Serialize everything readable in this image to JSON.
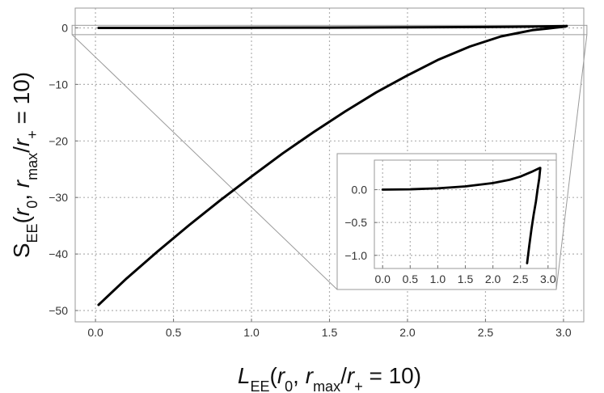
{
  "chart_data": [
    {
      "type": "line",
      "role": "main",
      "xlim": [
        -0.13,
        3.13
      ],
      "ylim": [
        -52,
        3.5
      ],
      "x_ticks": [
        0.0,
        0.5,
        1.0,
        1.5,
        2.0,
        2.5,
        3.0
      ],
      "x_tick_labels": [
        "0.0",
        "0.5",
        "1.0",
        "1.5",
        "2.0",
        "2.5",
        "3.0"
      ],
      "y_ticks": [
        0,
        -10,
        -20,
        -30,
        -40,
        -50
      ],
      "y_tick_labels": [
        "0",
        "−10",
        "−20",
        "−30",
        "−40",
        "−50"
      ],
      "grid": true,
      "xlabel": {
        "base": "L",
        "sub": "EE",
        "args": "(r",
        "args_sub": "0",
        "rest": ", r",
        "rest_sub": "max",
        "rest2": "/r",
        "rest2_sub": "+",
        "tail": " = 10)"
      },
      "ylabel": {
        "base": "S",
        "sub": "EE",
        "args": "(r",
        "args_sub": "0",
        "rest": ", r",
        "rest_sub": "max",
        "rest2": "/r",
        "rest2_sub": "+",
        "tail": " = 10)"
      },
      "series": [
        {
          "x": [
            0.02,
            0.5,
            1.0,
            1.5,
            2.0,
            2.5,
            2.8,
            3.02
          ],
          "y": [
            0.0,
            0.0,
            0.02,
            0.05,
            0.09,
            0.15,
            0.22,
            0.32
          ]
        },
        {
          "x": [
            0.02,
            0.2,
            0.4,
            0.6,
            0.8,
            1.0,
            1.2,
            1.4,
            1.6,
            1.8,
            2.0,
            2.2,
            2.4,
            2.6,
            2.8,
            2.9,
            2.95,
            3.0,
            3.02
          ],
          "y": [
            -49.0,
            -44.3,
            -39.5,
            -34.9,
            -30.5,
            -26.3,
            -22.2,
            -18.4,
            -14.8,
            -11.4,
            -8.4,
            -5.6,
            -3.3,
            -1.5,
            -0.4,
            -0.1,
            0.05,
            0.2,
            0.32
          ]
        }
      ]
    },
    {
      "type": "line",
      "role": "inset",
      "xlim": [
        -0.15,
        3.15
      ],
      "ylim": [
        -1.2,
        0.45
      ],
      "x_ticks": [
        0.0,
        0.5,
        1.0,
        1.5,
        2.0,
        2.5,
        3.0
      ],
      "x_tick_labels": [
        "0.0",
        "0.5",
        "1.0",
        "1.5",
        "2.0",
        "2.5",
        "3.0"
      ],
      "y_ticks": [
        0.0,
        -0.5,
        -1.0
      ],
      "y_tick_labels": [
        "0.0",
        "−0.5",
        "−1.0"
      ],
      "grid": true,
      "series": [
        {
          "x": [
            0.0,
            0.5,
            1.0,
            1.5,
            2.0,
            2.3,
            2.5,
            2.7,
            2.85
          ],
          "y": [
            0.0,
            0.005,
            0.02,
            0.05,
            0.1,
            0.15,
            0.2,
            0.27,
            0.33
          ]
        },
        {
          "x": [
            2.62,
            2.66,
            2.7,
            2.74,
            2.78,
            2.81,
            2.84,
            2.86
          ],
          "y": [
            -1.12,
            -0.85,
            -0.6,
            -0.38,
            -0.18,
            0.0,
            0.17,
            0.33
          ]
        }
      ]
    }
  ]
}
